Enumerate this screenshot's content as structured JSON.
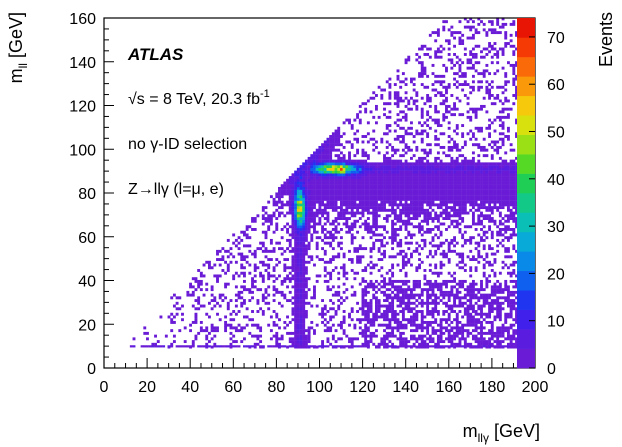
{
  "chart_data": {
    "type": "heatmap",
    "title": "",
    "xlabel": {
      "main": "m",
      "sub": "llγ",
      "unit": "[GeV]"
    },
    "ylabel": {
      "main": "m",
      "sub": "ll",
      "unit": "[GeV]"
    },
    "xlim": [
      0,
      200
    ],
    "ylim": [
      0,
      160
    ],
    "x_plot_max": 191,
    "x_ticks": [
      0,
      20,
      40,
      60,
      80,
      100,
      120,
      140,
      160,
      180,
      200
    ],
    "y_ticks": [
      0,
      20,
      40,
      60,
      80,
      100,
      120,
      140,
      160
    ],
    "colorbar": {
      "label": "Events",
      "min": 0,
      "max": 74,
      "ticks": [
        0,
        10,
        20,
        30,
        40,
        50,
        60,
        70
      ],
      "palette": [
        "#6a1bd6",
        "#5a1de0",
        "#4020ea",
        "#2035f0",
        "#1060f0",
        "#0a8ae8",
        "#08aad8",
        "#0abfb6",
        "#12c987",
        "#1fcf55",
        "#55d925",
        "#9be015",
        "#d8e10e",
        "#f6c90c",
        "#fa9a0a",
        "#fa6a08",
        "#f53a06",
        "#e81404"
      ]
    },
    "annotations": {
      "experiment": "ATLAS",
      "energy": "√s = 8 TeV, 20.3 fb",
      "energy_sup": "-1",
      "selection": "no γ-ID selection",
      "process": "Z→llγ (l=μ, e)"
    },
    "features": {
      "diagonal_edge": "mll = mllγ",
      "band_horizontal": {
        "y": 91,
        "x_from": 100,
        "x_to": 191,
        "peak_x": 108,
        "peak": 55
      },
      "band_vertical": {
        "x": 91,
        "y_from": 30,
        "y_to": 88,
        "peak_y": 73,
        "peak": 50
      },
      "lower_cut_mll": 10,
      "min_mllgamma": 12
    }
  }
}
